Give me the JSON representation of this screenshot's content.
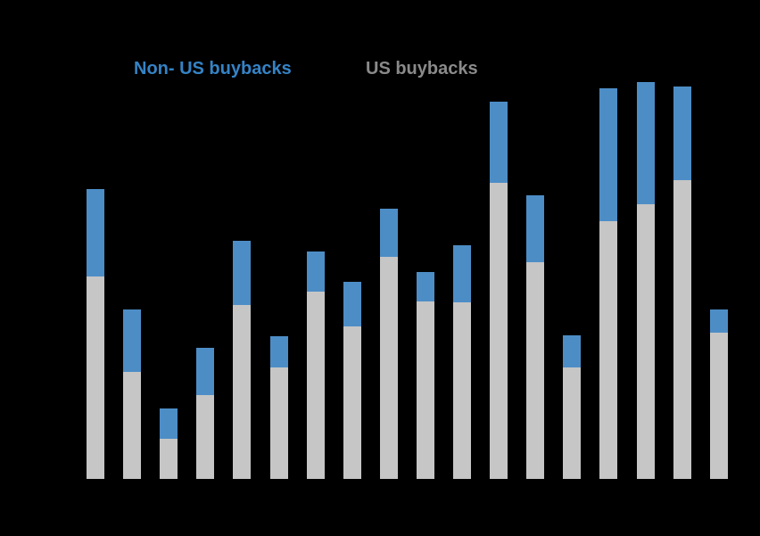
{
  "background_color": "#000000",
  "legend": {
    "items": [
      {
        "label": "Non- US buybacks",
        "color": "#3583c6"
      },
      {
        "label": "US buybacks",
        "color": "#8a8a8a"
      }
    ]
  },
  "chart_data": {
    "type": "bar",
    "stacked": true,
    "orientation": "vertical",
    "legend_position": "top",
    "title": "",
    "xlabel": "",
    "ylabel": "",
    "categories": [
      "",
      "",
      "",
      "",
      "",
      "",
      "",
      "",
      "",
      "",
      "",
      "",
      "",
      "",
      "",
      "",
      "",
      ""
    ],
    "series": [
      {
        "name": "US buybacks",
        "color": "#c6c6c6",
        "values": [
          227,
          120,
          45,
          94,
          195,
          125,
          210,
          171,
          249,
          199,
          198,
          332,
          243,
          125,
          289,
          308,
          335,
          164
        ]
      },
      {
        "name": "Non- US buybacks",
        "color": "#4d8dc6",
        "values": [
          98,
          70,
          34,
          53,
          72,
          35,
          45,
          50,
          54,
          33,
          64,
          91,
          75,
          36,
          149,
          137,
          105,
          26
        ]
      }
    ],
    "ylim": [
      0,
      480
    ],
    "value_units": "pixels (axis tick labels not legible in image)",
    "grid": false
  }
}
